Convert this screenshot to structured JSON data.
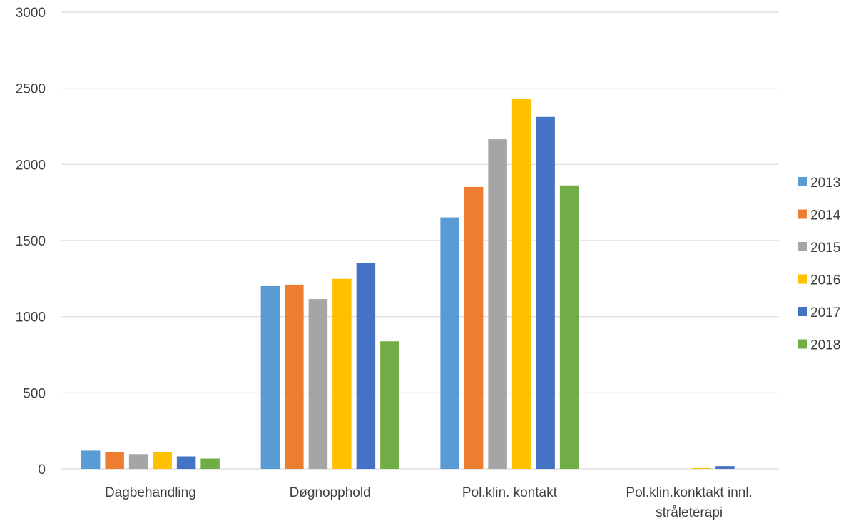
{
  "chart_data": {
    "type": "bar",
    "title": "",
    "xlabel": "",
    "ylabel": "",
    "ylim": [
      0,
      3000
    ],
    "yticks": [
      0,
      500,
      1000,
      1500,
      2000,
      2500,
      3000
    ],
    "grid": true,
    "legend_position": "right",
    "categories": [
      "Dagbehandling",
      "Døgnopphold",
      "Pol.klin. kontakt",
      "Pol.klin.konktakt innl. stråleterapi"
    ],
    "category_lines": [
      [
        "Dagbehandling"
      ],
      [
        "Døgnopphold"
      ],
      [
        "Pol.klin. kontakt"
      ],
      [
        "Pol.klin.konktakt innl.",
        "stråleterapi"
      ]
    ],
    "series": [
      {
        "name": "2013",
        "color": "#5B9BD5",
        "values": [
          120,
          1200,
          1652,
          0
        ]
      },
      {
        "name": "2014",
        "color": "#ED7D31",
        "values": [
          108,
          1210,
          1852,
          0
        ]
      },
      {
        "name": "2015",
        "color": "#A5A5A5",
        "values": [
          97,
          1115,
          2165,
          0
        ]
      },
      {
        "name": "2016",
        "color": "#FFC000",
        "values": [
          108,
          1248,
          2428,
          5
        ]
      },
      {
        "name": "2017",
        "color": "#4472C4",
        "values": [
          82,
          1352,
          2312,
          18
        ]
      },
      {
        "name": "2018",
        "color": "#70AD47",
        "values": [
          68,
          838,
          1862,
          0
        ]
      }
    ]
  }
}
